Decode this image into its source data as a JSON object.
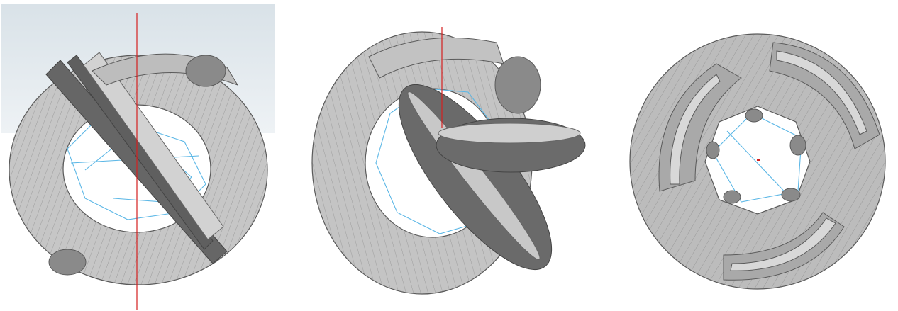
{
  "views": [
    {
      "id": "view-1",
      "projection": "front-oblique",
      "axis_line": "red",
      "background": "gradient"
    },
    {
      "id": "view-2",
      "projection": "side-oblique",
      "axis_line": "red",
      "background": "white"
    },
    {
      "id": "view-3",
      "projection": "top",
      "axis_line": "none",
      "background": "white"
    }
  ],
  "colors": {
    "surface_light": "#c8c8c8",
    "surface_mid": "#a8a8a8",
    "surface_dark": "#6e6e6e",
    "edge": "#5a5a5a",
    "wire": "#5bb7e6",
    "axis": "#d42020",
    "gradient_top": "#d9e2e8",
    "gradient_bottom": "#eef2f5"
  }
}
